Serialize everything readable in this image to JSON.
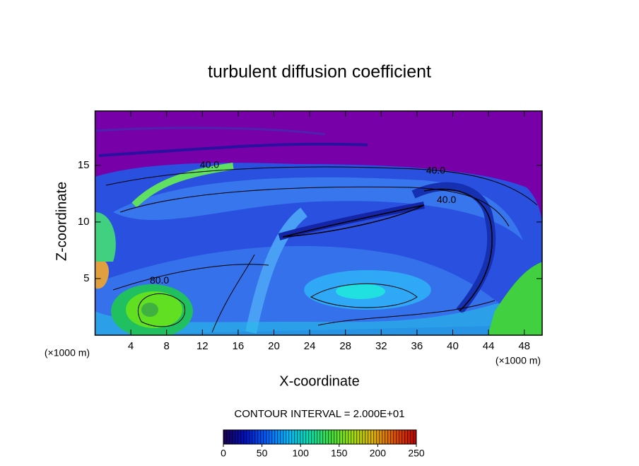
{
  "chart_data": {
    "type": "contour",
    "title": "turbulent diffusion coefficient",
    "x_label": "X-coordinate",
    "y_label": "Z-coordinate",
    "y_unit": "(×1000 m)",
    "x_unit": "(×1000 m)",
    "xlim": [
      0,
      50
    ],
    "xticks": [
      4,
      8,
      12,
      16,
      20,
      24,
      28,
      32,
      36,
      40,
      44,
      48
    ],
    "ylim": [
      0,
      19.8
    ],
    "yticks": [
      5,
      10,
      15
    ],
    "contour_interval_label": "CONTOUR INTERVAL = 2.000E+01",
    "contour_labels": [
      {
        "text": "40.0",
        "x": 12.8,
        "y": 15
      },
      {
        "text": "40.0",
        "x": 38.1,
        "y": 14.5
      },
      {
        "text": "40.0",
        "x": 39.3,
        "y": 11.9
      },
      {
        "text": "80.0",
        "x": 7.2,
        "y": 4.8
      }
    ],
    "colorbar": {
      "lim": [
        0,
        250
      ],
      "ticks": [
        0,
        50,
        100,
        150,
        200,
        250
      ],
      "colors": [
        "#1a0050",
        "#0010c0",
        "#0060ff",
        "#00b8ff",
        "#00e0b0",
        "#40e040",
        "#a0e000",
        "#e0b000",
        "#e05000",
        "#c00000"
      ]
    }
  }
}
